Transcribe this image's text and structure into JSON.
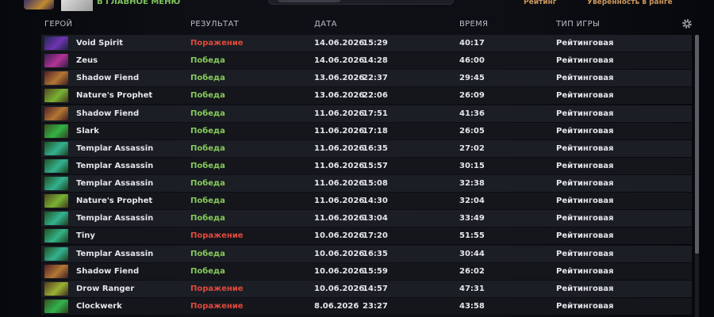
{
  "top_bar": {
    "back_button": "В ГЛАВНОЕ МЕНЮ",
    "tabs": [
      "Рейтинг",
      "Уверенность в ранге"
    ]
  },
  "table": {
    "headers": [
      "ГЕРОЙ",
      "РЕЗУЛЬТАТ",
      "ДАТА",
      "ВРЕМЯ",
      "ТИП ИГРЫ"
    ],
    "result_colors": {
      "Победа": "#86c95a",
      "Поражение": "#e2493b"
    },
    "rows": [
      [
        "Void Spirit",
        "Поражение",
        "14.06.2026",
        "15:29",
        "40:17",
        "Рейтинговая"
      ],
      [
        "Zeus",
        "Победа",
        "14.06.2026",
        "14:28",
        "46:00",
        "Рейтинговая"
      ],
      [
        "Shadow Fiend",
        "Победа",
        "13.06.2026",
        "22:37",
        "29:45",
        "Рейтинговая"
      ],
      [
        "Nature's Prophet",
        "Победа",
        "13.06.2026",
        "22:06",
        "26:09",
        "Рейтинговая"
      ],
      [
        "Shadow Fiend",
        "Победа",
        "11.06.2026",
        "17:51",
        "41:36",
        "Рейтинговая"
      ],
      [
        "Slark",
        "Победа",
        "11.06.2026",
        "17:18",
        "26:05",
        "Рейтинговая"
      ],
      [
        "Templar Assassin",
        "Победа",
        "11.06.2026",
        "16:35",
        "27:02",
        "Рейтинговая"
      ],
      [
        "Templar Assassin",
        "Победа",
        "11.06.2026",
        "15:57",
        "30:15",
        "Рейтинговая"
      ],
      [
        "Templar Assassin",
        "Победа",
        "11.06.2026",
        "15:08",
        "32:38",
        "Рейтинговая"
      ],
      [
        "Nature's Prophet",
        "Победа",
        "11.06.2026",
        "14:30",
        "32:04",
        "Рейтинговая"
      ],
      [
        "Templar Assassin",
        "Победа",
        "11.06.2026",
        "13:04",
        "33:49",
        "Рейтинговая"
      ],
      [
        "Tiny",
        "Поражение",
        "10.06.2026",
        "17:20",
        "51:55",
        "Рейтинговая"
      ],
      [
        "Templar Assassin",
        "Победа",
        "10.06.2026",
        "16:35",
        "30:44",
        "Рейтинговая"
      ],
      [
        "Shadow Fiend",
        "Победа",
        "10.06.2026",
        "15:59",
        "26:02",
        "Рейтинговая"
      ],
      [
        "Drow Ranger",
        "Поражение",
        "10.06.2026",
        "14:57",
        "47:31",
        "Рейтинговая"
      ],
      [
        "Clockwerk",
        "Поражение",
        "8.06.2026",
        "23:27",
        "43:58",
        "Рейтинговая"
      ]
    ]
  }
}
